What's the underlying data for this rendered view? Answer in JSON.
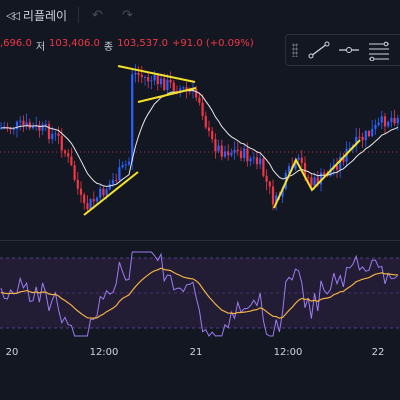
{
  "topbar": {
    "replay_label": "리플레이",
    "replay_icon": "rewind-icon",
    "undo_icon": "undo-icon",
    "redo_icon": "redo-icon"
  },
  "legend": {
    "open_value": ",696.0",
    "low_label": "저",
    "low_value": "103,406.0",
    "close_label": "종",
    "close_value": "103,537.0",
    "change": "+91.0 (+0.09%)"
  },
  "tools": {
    "items": [
      "grip-icon",
      "trend-line-icon",
      "horizontal-ray-icon",
      "fib-levels-icon"
    ]
  },
  "xaxis": {
    "labels": [
      "20",
      "12:00",
      "21",
      "12:00",
      "22"
    ]
  },
  "colors": {
    "up": "#2962ff",
    "down": "#f23645",
    "ma": "#e8e8e8",
    "osc": "#9c7cf0",
    "signal": "#f0b042",
    "drawing": "#f5e12a",
    "bg": "#131722"
  }
}
